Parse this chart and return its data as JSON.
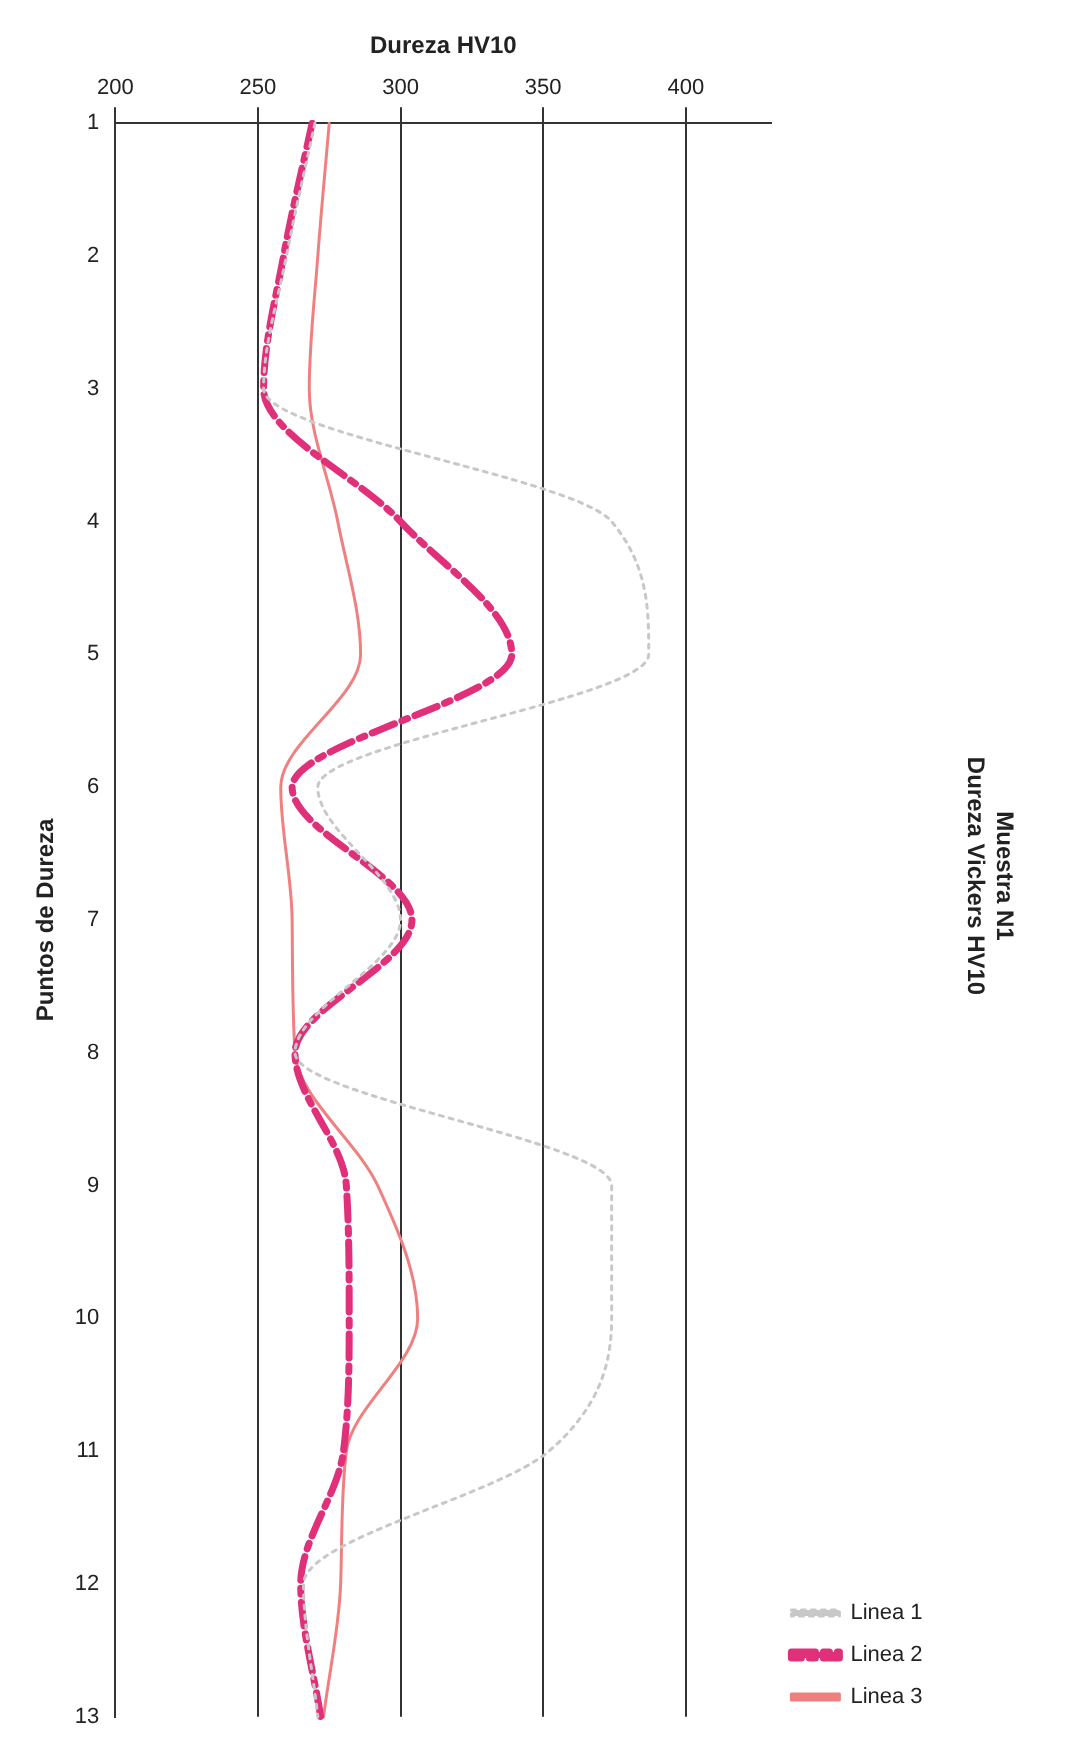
{
  "chart_data": {
    "type": "line",
    "title": [
      "Muestra N1",
      "Dureza Vickers HV10"
    ],
    "xlabel": "Dureza HV10",
    "ylabel": "Puntos de Dureza",
    "orientation": "horizontal",
    "categories": [
      "1",
      "2",
      "3",
      "4",
      "5",
      "6",
      "7",
      "8",
      "9",
      "10",
      "11",
      "12",
      "13"
    ],
    "xlim": [
      200,
      430
    ],
    "xticks": [
      200,
      250,
      300,
      350,
      400
    ],
    "grid": "x",
    "legend": "bottom right",
    "marker": "none",
    "series": [
      {
        "name": "Linea 1",
        "color": "#c8c8c8",
        "line_style": "dotted",
        "values": [
          270,
          260,
          252,
          374,
          387,
          271,
          300,
          263,
          374,
          374,
          352,
          266,
          271
        ]
      },
      {
        "name": "Linea 2",
        "color": "#e0307a",
        "line_style": "dashed",
        "values": [
          269,
          259,
          252,
          300,
          339,
          262,
          304,
          263,
          281,
          282,
          280,
          265,
          272
        ]
      },
      {
        "name": "Linea 3",
        "color": "#f08080",
        "line_style": "solid",
        "values": [
          275,
          271,
          268,
          278,
          286,
          258,
          262,
          263,
          292,
          306,
          281,
          279,
          273
        ]
      }
    ]
  }
}
